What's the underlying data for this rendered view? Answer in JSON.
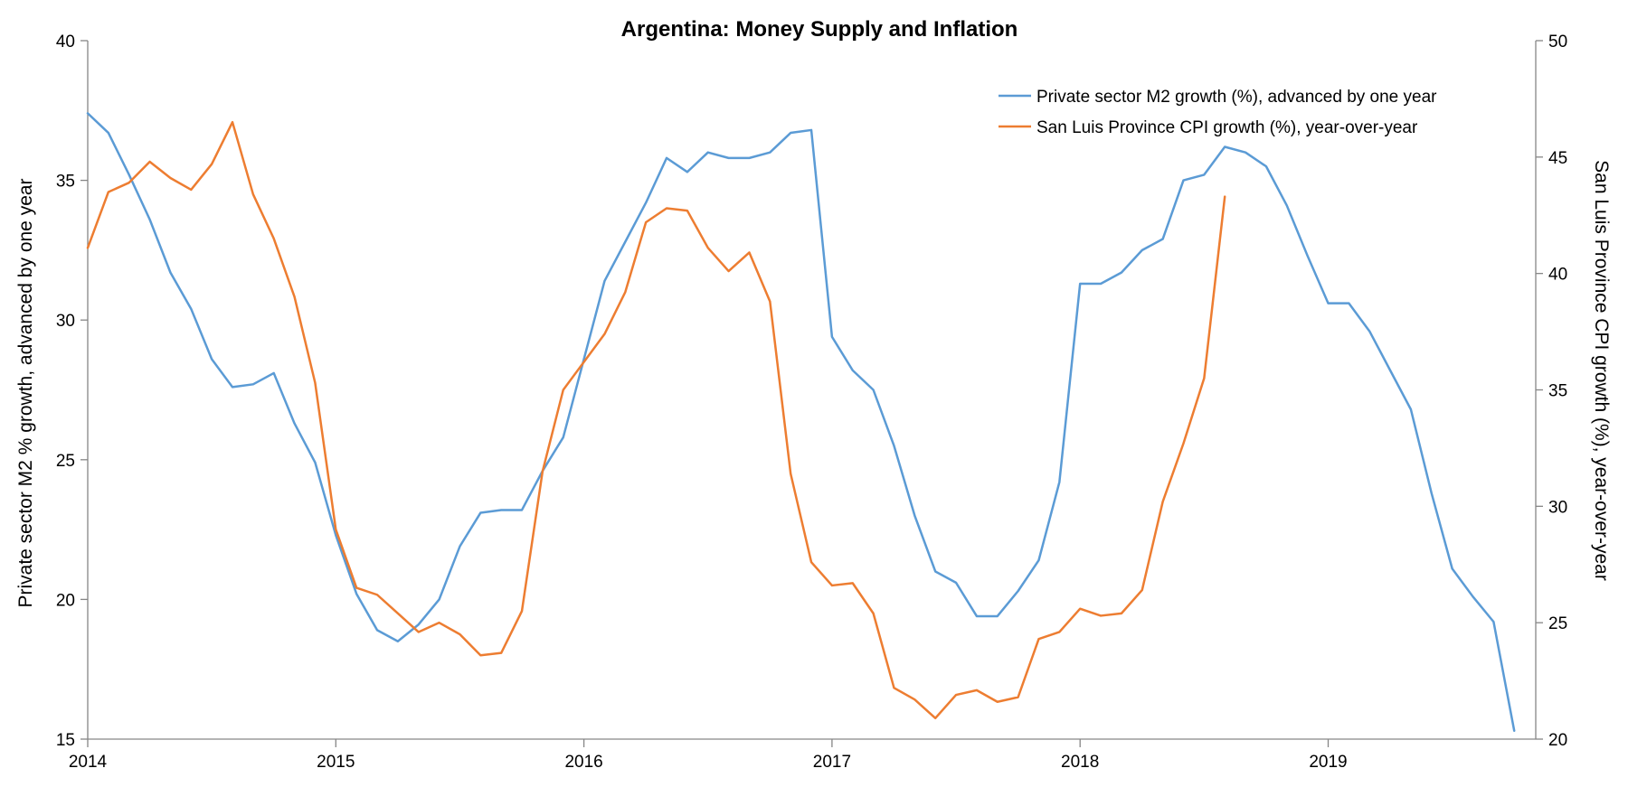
{
  "chart_data": {
    "type": "line",
    "title": "Argentina: Money Supply and Inflation",
    "x_start": 2014.0,
    "x_step": 0.08333333333,
    "xlim": [
      2014.0,
      2019.82
    ],
    "x_ticks": [
      2014,
      2015,
      2016,
      2017,
      2018,
      2019
    ],
    "x_tick_labels": [
      "2014",
      "2015",
      "2016",
      "2017",
      "2018",
      "2019"
    ],
    "ylabel": "Private sector M2 % growth, advanced by one year",
    "ylim": [
      15,
      40
    ],
    "y_ticks": [
      15,
      20,
      25,
      30,
      35,
      40
    ],
    "y_tick_labels": [
      "15",
      "20",
      "25",
      "30",
      "35",
      "40"
    ],
    "y2label": "San Luis Province CPI growth (%), year-over-year",
    "y2lim": [
      20,
      50
    ],
    "y2_ticks": [
      20,
      25,
      30,
      35,
      40,
      45,
      50
    ],
    "y2_tick_labels": [
      "20",
      "25",
      "30",
      "35",
      "40",
      "45",
      "50"
    ],
    "legend_position": "top-right",
    "grid": false,
    "series": [
      {
        "name": "Private sector M2 growth (%), advanced by one year",
        "axis": "left",
        "color": "#5b9bd5",
        "values": [
          37.4,
          36.7,
          35.2,
          33.6,
          31.7,
          30.4,
          28.6,
          27.6,
          27.7,
          28.1,
          26.3,
          24.9,
          22.3,
          20.2,
          18.9,
          18.5,
          19.1,
          20.0,
          21.9,
          23.1,
          23.2,
          23.2,
          24.6,
          25.8,
          28.6,
          31.4,
          32.8,
          34.2,
          35.8,
          35.3,
          36.0,
          35.8,
          35.8,
          36.0,
          36.7,
          36.8,
          29.4,
          28.2,
          27.5,
          25.5,
          23.0,
          21.0,
          20.6,
          19.4,
          19.4,
          20.3,
          21.4,
          24.2,
          31.3,
          31.3,
          31.7,
          32.5,
          32.9,
          35.0,
          35.2,
          36.2,
          36.0,
          35.5,
          34.1,
          32.3,
          30.6,
          30.6,
          29.6,
          28.2,
          26.8,
          23.8,
          21.1,
          20.1,
          19.2,
          15.3
        ]
      },
      {
        "name": "San Luis Province CPI growth (%), year-over-year",
        "axis": "right",
        "color": "#ed7d31",
        "values": [
          41.1,
          43.5,
          43.9,
          44.8,
          44.1,
          43.6,
          44.7,
          46.5,
          43.4,
          41.5,
          39.0,
          35.3,
          29.0,
          26.5,
          26.2,
          25.4,
          24.6,
          25.0,
          24.5,
          23.6,
          23.7,
          25.5,
          31.5,
          35.0,
          36.2,
          37.4,
          39.2,
          42.2,
          42.8,
          42.7,
          41.1,
          40.1,
          40.9,
          38.8,
          31.4,
          27.6,
          26.6,
          26.7,
          25.4,
          22.2,
          21.7,
          20.9,
          21.9,
          22.1,
          21.6,
          21.8,
          24.3,
          24.6,
          25.6,
          25.3,
          25.4,
          26.4,
          30.2,
          32.7,
          35.5,
          43.3
        ]
      }
    ]
  }
}
